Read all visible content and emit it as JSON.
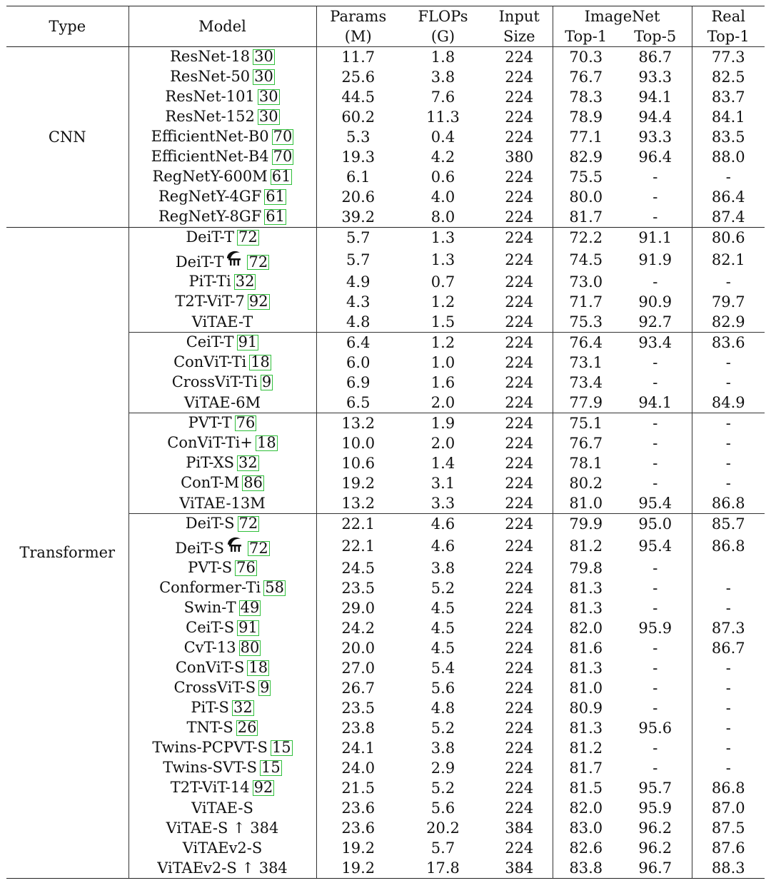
{
  "header": {
    "type": "Type",
    "model": "Model",
    "params": [
      "Params",
      "(M)"
    ],
    "flops": [
      "FLOPs",
      "(G)"
    ],
    "input": [
      "Input",
      "Size"
    ],
    "imagenet": "ImageNet",
    "top1": "Top-1",
    "top5": "Top-5",
    "real": [
      "Real",
      "Top-1"
    ]
  },
  "groups": [
    {
      "type": "CNN",
      "sections": [
        [
          {
            "model": "ResNet-18",
            "ref": "30",
            "params": "11.7",
            "flops": "1.8",
            "input": "224",
            "top1": "70.3",
            "top5": "86.7",
            "real": "77.3"
          },
          {
            "model": "ResNet-50",
            "ref": "30",
            "params": "25.6",
            "flops": "3.8",
            "input": "224",
            "top1": "76.7",
            "top5": "93.3",
            "real": "82.5"
          },
          {
            "model": "ResNet-101",
            "ref": "30",
            "params": "44.5",
            "flops": "7.6",
            "input": "224",
            "top1": "78.3",
            "top5": "94.1",
            "real": "83.7"
          },
          {
            "model": "ResNet-152",
            "ref": "30",
            "params": "60.2",
            "flops": "11.3",
            "input": "224",
            "top1": "78.9",
            "top5": "94.4",
            "real": "84.1"
          },
          {
            "model": "EfficientNet-B0",
            "ref": "70",
            "params": "5.3",
            "flops": "0.4",
            "input": "224",
            "top1": "77.1",
            "top5": "93.3",
            "real": "83.5"
          },
          {
            "model": "EfficientNet-B4",
            "ref": "70",
            "params": "19.3",
            "flops": "4.2",
            "input": "380",
            "top1": "82.9",
            "top5": "96.4",
            "real": "88.0"
          },
          {
            "model": "RegNetY-600M",
            "ref": "61",
            "params": "6.1",
            "flops": "0.6",
            "input": "224",
            "top1": "75.5",
            "top5": "-",
            "real": "-"
          },
          {
            "model": "RegNetY-4GF",
            "ref": "61",
            "params": "20.6",
            "flops": "4.0",
            "input": "224",
            "top1": "80.0",
            "top5": "-",
            "real": "86.4"
          },
          {
            "model": "RegNetY-8GF",
            "ref": "61",
            "params": "39.2",
            "flops": "8.0",
            "input": "224",
            "top1": "81.7",
            "top5": "-",
            "real": "87.4"
          }
        ]
      ]
    },
    {
      "type": "Transformer",
      "sections": [
        [
          {
            "model": "DeiT-T",
            "ref": "72",
            "params": "5.7",
            "flops": "1.3",
            "input": "224",
            "top1": "72.2",
            "top5": "91.1",
            "real": "80.6"
          },
          {
            "model": "DeiT-T",
            "ref": "72",
            "distill": true,
            "params": "5.7",
            "flops": "1.3",
            "input": "224",
            "top1": "74.5",
            "top5": "91.9",
            "real": "82.1"
          },
          {
            "model": "PiT-Ti",
            "ref": "32",
            "params": "4.9",
            "flops": "0.7",
            "input": "224",
            "top1": "73.0",
            "top5": "-",
            "real": "-"
          },
          {
            "model": "T2T-ViT-7",
            "ref": "92",
            "params": "4.3",
            "flops": "1.2",
            "input": "224",
            "top1": "71.7",
            "top5": "90.9",
            "real": "79.7"
          },
          {
            "model": "ViTAE-T",
            "ref": "",
            "params": "4.8",
            "flops": "1.5",
            "input": "224",
            "top1": "75.3",
            "top5": "92.7",
            "real": "82.9"
          }
        ],
        [
          {
            "model": "CeiT-T",
            "ref": "91",
            "params": "6.4",
            "flops": "1.2",
            "input": "224",
            "top1": "76.4",
            "top5": "93.4",
            "real": "83.6"
          },
          {
            "model": "ConViT-Ti",
            "ref": "18",
            "params": "6.0",
            "flops": "1.0",
            "input": "224",
            "top1": "73.1",
            "top5": "-",
            "real": "-"
          },
          {
            "model": "CrossViT-Ti",
            "ref": "9",
            "params": "6.9",
            "flops": "1.6",
            "input": "224",
            "top1": "73.4",
            "top5": "-",
            "real": "-"
          },
          {
            "model": "ViTAE-6M",
            "ref": "",
            "params": "6.5",
            "flops": "2.0",
            "input": "224",
            "top1": "77.9",
            "top5": "94.1",
            "real": "84.9"
          }
        ],
        [
          {
            "model": "PVT-T",
            "ref": "76",
            "params": "13.2",
            "flops": "1.9",
            "input": "224",
            "top1": "75.1",
            "top5": "-",
            "real": "-"
          },
          {
            "model": "ConViT-Ti+",
            "ref": "18",
            "params": "10.0",
            "flops": "2.0",
            "input": "224",
            "top1": "76.7",
            "top5": "-",
            "real": "-"
          },
          {
            "model": "PiT-XS",
            "ref": "32",
            "params": "10.6",
            "flops": "1.4",
            "input": "224",
            "top1": "78.1",
            "top5": "-",
            "real": "-"
          },
          {
            "model": "ConT-M",
            "ref": "86",
            "params": "19.2",
            "flops": "3.1",
            "input": "224",
            "top1": "80.2",
            "top5": "-",
            "real": "-"
          },
          {
            "model": "ViTAE-13M",
            "ref": "",
            "params": "13.2",
            "flops": "3.3",
            "input": "224",
            "top1": "81.0",
            "top5": "95.4",
            "real": "86.8"
          }
        ],
        [
          {
            "model": "DeiT-S",
            "ref": "72",
            "params": "22.1",
            "flops": "4.6",
            "input": "224",
            "top1": "79.9",
            "top5": "95.0",
            "real": "85.7"
          },
          {
            "model": "DeiT-S",
            "ref": "72",
            "distill": true,
            "params": "22.1",
            "flops": "4.6",
            "input": "224",
            "top1": "81.2",
            "top5": "95.4",
            "real": "86.8"
          },
          {
            "model": "PVT-S",
            "ref": "76",
            "params": "24.5",
            "flops": "3.8",
            "input": "224",
            "top1": "79.8",
            "top5": "-",
            "real": ""
          },
          {
            "model": "Conformer-Ti",
            "ref": "58",
            "params": "23.5",
            "flops": "5.2",
            "input": "224",
            "top1": "81.3",
            "top5": "-",
            "real": "-"
          },
          {
            "model": "Swin-T",
            "ref": "49",
            "params": "29.0",
            "flops": "4.5",
            "input": "224",
            "top1": "81.3",
            "top5": "-",
            "real": "-"
          },
          {
            "model": "CeiT-S",
            "ref": "91",
            "params": "24.2",
            "flops": "4.5",
            "input": "224",
            "top1": "82.0",
            "top5": "95.9",
            "real": "87.3"
          },
          {
            "model": "CvT-13",
            "ref": "80",
            "params": "20.0",
            "flops": "4.5",
            "input": "224",
            "top1": "81.6",
            "top5": "-",
            "real": "86.7"
          },
          {
            "model": "ConViT-S",
            "ref": "18",
            "params": "27.0",
            "flops": "5.4",
            "input": "224",
            "top1": "81.3",
            "top5": "-",
            "real": "-"
          },
          {
            "model": "CrossViT-S",
            "ref": "9",
            "params": "26.7",
            "flops": "5.6",
            "input": "224",
            "top1": "81.0",
            "top5": "-",
            "real": "-"
          },
          {
            "model": "PiT-S",
            "ref": "32",
            "params": "23.5",
            "flops": "4.8",
            "input": "224",
            "top1": "80.9",
            "top5": "-",
            "real": "-"
          },
          {
            "model": "TNT-S",
            "ref": "26",
            "params": "23.8",
            "flops": "5.2",
            "input": "224",
            "top1": "81.3",
            "top5": "95.6",
            "real": "-"
          },
          {
            "model": "Twins-PCPVT-S",
            "ref": "15",
            "params": "24.1",
            "flops": "3.8",
            "input": "224",
            "top1": "81.2",
            "top5": "-",
            "real": "-"
          },
          {
            "model": "Twins-SVT-S",
            "ref": "15",
            "params": "24.0",
            "flops": "2.9",
            "input": "224",
            "top1": "81.7",
            "top5": "-",
            "real": "-"
          },
          {
            "model": "T2T-ViT-14",
            "ref": "92",
            "params": "21.5",
            "flops": "5.2",
            "input": "224",
            "top1": "81.5",
            "top5": "95.7",
            "real": "86.8"
          },
          {
            "model": "ViTAE-S",
            "ref": "",
            "params": "23.6",
            "flops": "5.6",
            "input": "224",
            "top1": "82.0",
            "top5": "95.9",
            "real": "87.0"
          },
          {
            "model": "ViTAE-S ↑ 384",
            "ref": "",
            "params": "23.6",
            "flops": "20.2",
            "input": "384",
            "top1": "83.0",
            "top5": "96.2",
            "real": "87.5"
          },
          {
            "model": "ViTAEv2-S",
            "ref": "",
            "params": "19.2",
            "flops": "5.7",
            "input": "224",
            "top1": "82.6",
            "top5": "96.2",
            "real": "87.6"
          },
          {
            "model": "ViTAEv2-S ↑ 384",
            "ref": "",
            "params": "19.2",
            "flops": "17.8",
            "input": "384",
            "top1": "83.8",
            "top5": "96.7",
            "real": "88.3"
          }
        ]
      ]
    }
  ]
}
